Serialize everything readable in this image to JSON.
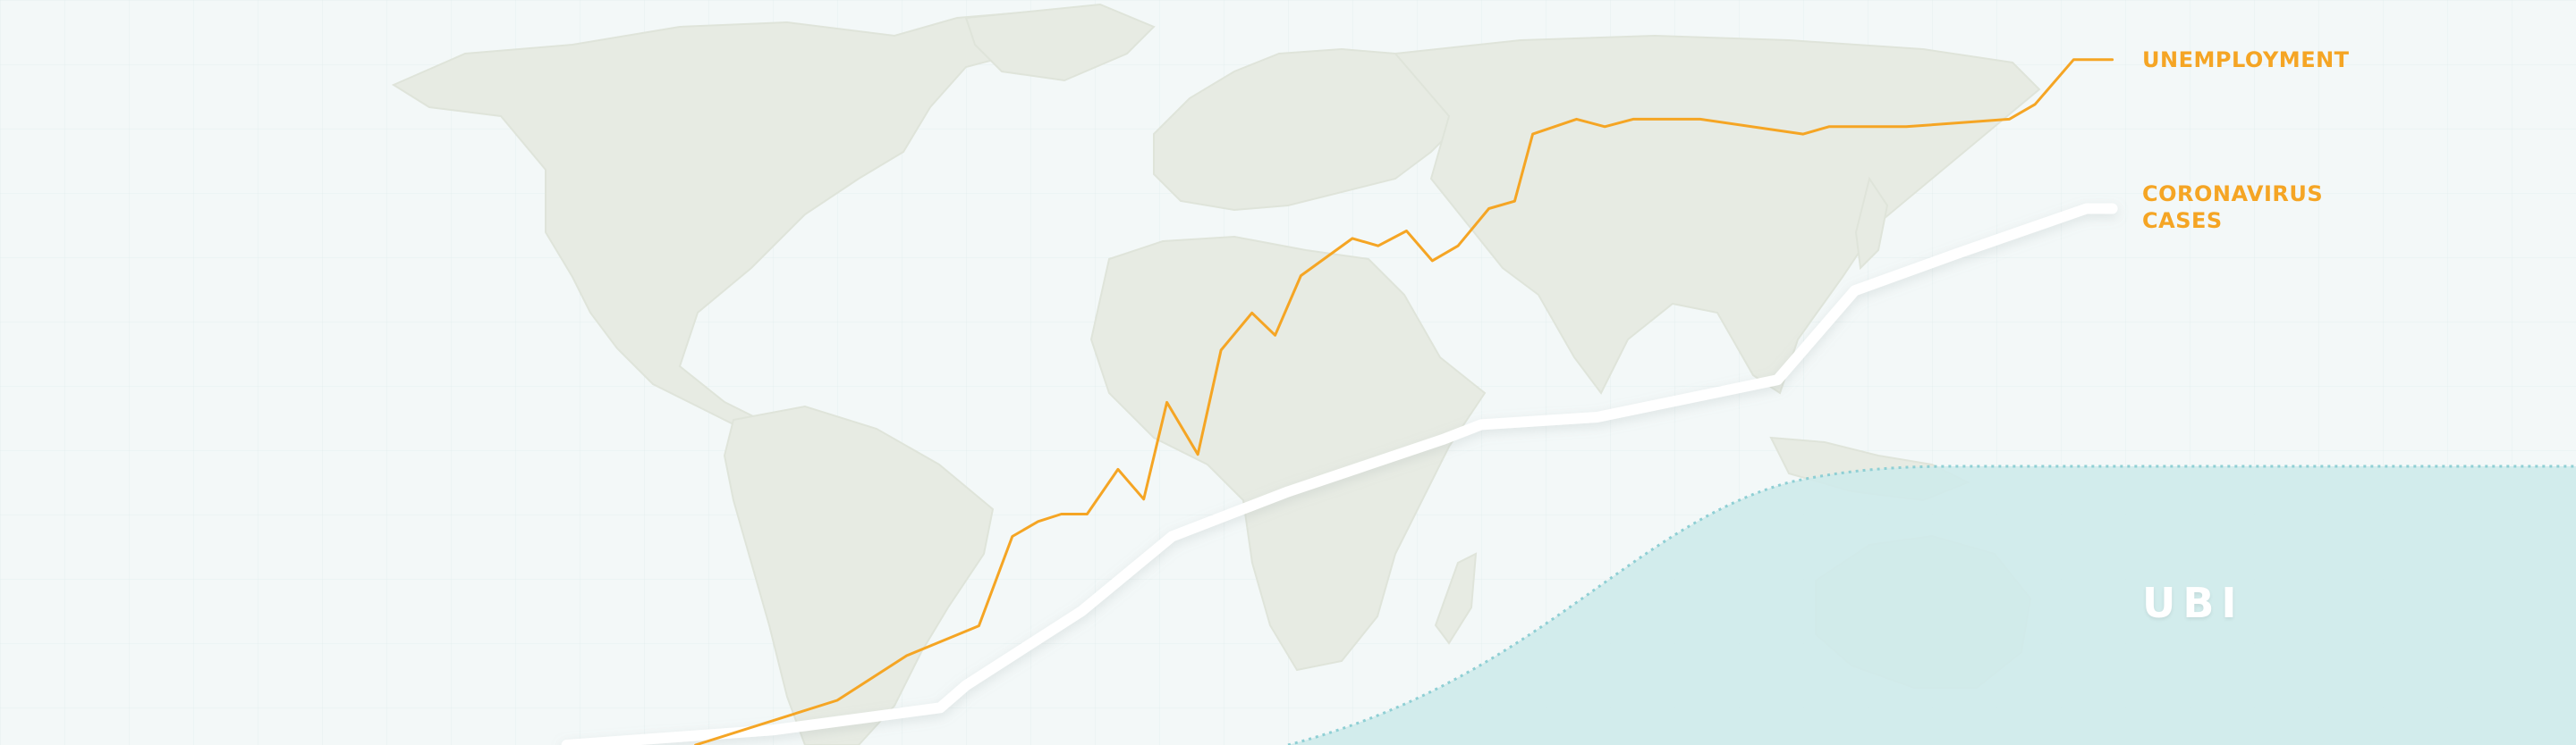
{
  "labels": {
    "unemployment": "UNEMPLOYMENT",
    "coronavirus": "CORONAVIRUS CASES",
    "ubi": "UBI"
  },
  "colors": {
    "background": "#f3f8f8",
    "map_land": "#e7ebe3",
    "unemployment_line": "#f5a524",
    "coronavirus_line": "#ffffff",
    "ubi_fill": "#cfeaea",
    "ubi_edge": "#8fcfd4"
  },
  "chart_data": {
    "type": "line",
    "title": "",
    "xlabel": "",
    "ylabel": "",
    "axes_shown": false,
    "grid": true,
    "legend": "direct labels at line ends (right)",
    "series": [
      {
        "name": "UNEMPLOYMENT",
        "color": "#f5a524",
        "points": [
          [
            0.27,
            0.0
          ],
          [
            0.325,
            0.06
          ],
          [
            0.352,
            0.12
          ],
          [
            0.38,
            0.16
          ],
          [
            0.393,
            0.28
          ],
          [
            0.403,
            0.3
          ],
          [
            0.412,
            0.31
          ],
          [
            0.422,
            0.31
          ],
          [
            0.434,
            0.37
          ],
          [
            0.444,
            0.33
          ],
          [
            0.453,
            0.46
          ],
          [
            0.465,
            0.39
          ],
          [
            0.474,
            0.53
          ],
          [
            0.486,
            0.58
          ],
          [
            0.495,
            0.55
          ],
          [
            0.505,
            0.63
          ],
          [
            0.525,
            0.68
          ],
          [
            0.535,
            0.67
          ],
          [
            0.546,
            0.69
          ],
          [
            0.556,
            0.65
          ],
          [
            0.566,
            0.67
          ],
          [
            0.578,
            0.72
          ],
          [
            0.588,
            0.73
          ],
          [
            0.595,
            0.82
          ],
          [
            0.612,
            0.84
          ],
          [
            0.623,
            0.83
          ],
          [
            0.634,
            0.84
          ],
          [
            0.66,
            0.84
          ],
          [
            0.7,
            0.82
          ],
          [
            0.71,
            0.83
          ],
          [
            0.74,
            0.83
          ],
          [
            0.78,
            0.84
          ],
          [
            0.79,
            0.86
          ],
          [
            0.805,
            0.92
          ],
          [
            0.82,
            0.92
          ]
        ]
      },
      {
        "name": "CORONAVIRUS CASES",
        "color": "#ffffff",
        "points": [
          [
            0.22,
            0.0
          ],
          [
            0.3,
            0.02
          ],
          [
            0.365,
            0.05
          ],
          [
            0.375,
            0.08
          ],
          [
            0.42,
            0.18
          ],
          [
            0.455,
            0.28
          ],
          [
            0.5,
            0.34
          ],
          [
            0.56,
            0.41
          ],
          [
            0.575,
            0.43
          ],
          [
            0.62,
            0.44
          ],
          [
            0.69,
            0.49
          ],
          [
            0.72,
            0.61
          ],
          [
            0.76,
            0.66
          ],
          [
            0.81,
            0.72
          ],
          [
            0.82,
            0.72
          ]
        ]
      }
    ],
    "regions": [
      {
        "name": "UBI",
        "color": "#cfeaea"
      }
    ]
  }
}
